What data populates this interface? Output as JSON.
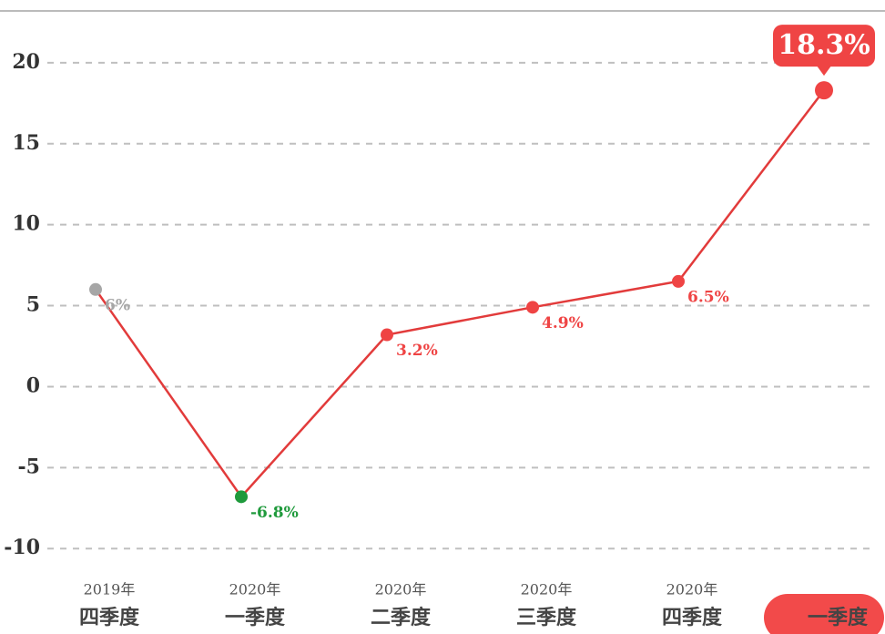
{
  "chart_data": {
    "type": "line",
    "category_years": [
      "2019年",
      "2020年",
      "2020年",
      "2020年",
      "2020年",
      null
    ],
    "categories": [
      "四季度",
      "一季度",
      "二季度",
      "三季度",
      "四季度",
      "一季度"
    ],
    "values": [
      6,
      -6.8,
      3.2,
      4.9,
      6.5,
      18.3
    ],
    "value_labels": [
      "6%",
      "-6.8%",
      "3.2%",
      "4.9%",
      "6.5%",
      "18.3%"
    ],
    "point_colors": [
      "#a6a6a6",
      "#1f9a3c",
      "#ef4444",
      "#ef4444",
      "#ef4444",
      "#ef4444"
    ],
    "color": "#e23b3b",
    "ylim": [
      -11,
      23.2
    ],
    "yticks": [
      -10,
      -5,
      0,
      5,
      10,
      15,
      20
    ],
    "grid": true
  }
}
